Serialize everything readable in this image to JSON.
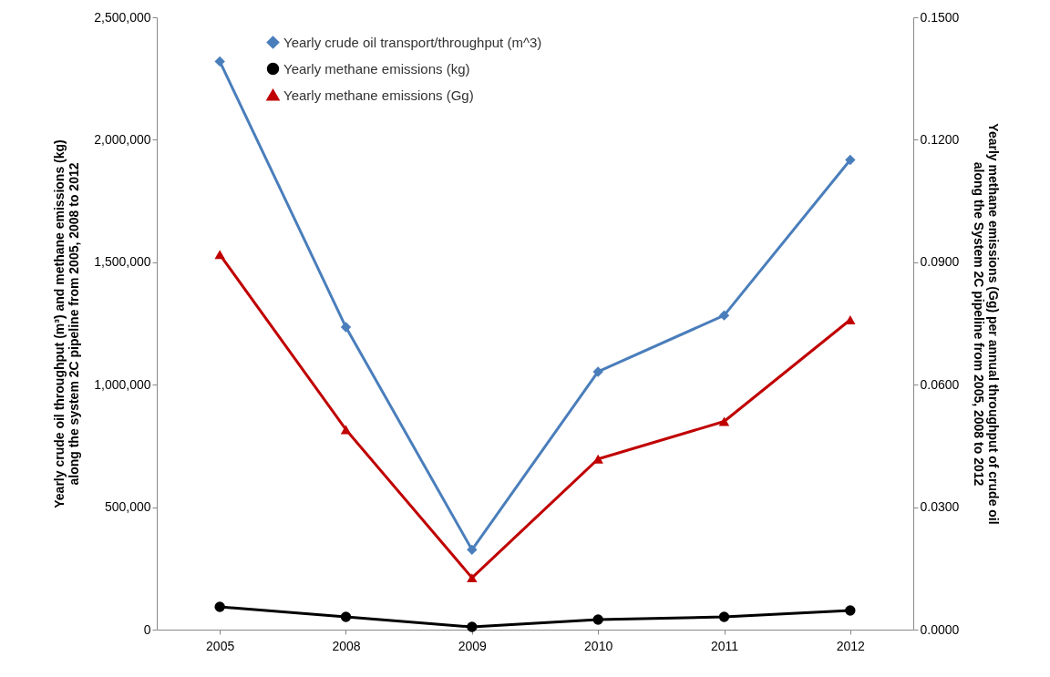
{
  "chart_data": {
    "type": "line",
    "categories": [
      "2005",
      "2008",
      "2009",
      "2010",
      "2011",
      "2012"
    ],
    "ylabel": "Yearly crude oil throughput (m³) and methane emissions (kg)\nalong the system 2C pipeline from 2005, 2008 to 2012",
    "y2label": "Yearly methane emissions (Gg) per annual throughput of crude oil\nalong the System 2C pipeline from 2005, 2008 to 2012",
    "series": [
      {
        "name": "Yearly crude oil transport/throughput (m^3)",
        "color": "#4a7ebb",
        "marker": "diamond",
        "values": [
          2320000,
          1235000,
          326000,
          1053000,
          1283000,
          1918000
        ]
      },
      {
        "name": "Yearly methane emissions (kg)",
        "color": "#000000",
        "marker": "circle",
        "values": [
          93000,
          52000,
          11000,
          41000,
          52000,
          78000
        ]
      },
      {
        "name": "Yearly methane emissions (Gg)",
        "color": "#c00000",
        "marker": "triangle",
        "axis": "y2",
        "values": [
          0.0919,
          0.049,
          0.0127,
          0.0418,
          0.051,
          0.0759
        ]
      }
    ],
    "ylim": [
      0,
      2500000
    ],
    "yticks": [
      0,
      {
        "value": 500000,
        "label": "500,000"
      },
      {
        "value": 1000000,
        "label": "1,000,000"
      },
      {
        "value": 1500000,
        "label": "1,500,000"
      },
      {
        "value": 2000000,
        "label": "2,000,000"
      },
      {
        "value": 2500000,
        "label": "2,500,000"
      }
    ],
    "y2lim": [
      0,
      0.15
    ],
    "y2ticks": [
      {
        "value": 0,
        "label": "0.0000"
      },
      {
        "value": 0.03,
        "label": "0.0300"
      },
      {
        "value": 0.06,
        "label": "0.0600"
      },
      {
        "value": 0.09,
        "label": "0.0900"
      },
      {
        "value": 0.12,
        "label": "0.1200"
      },
      {
        "value": 0.15,
        "label": "0.1500"
      }
    ],
    "grid": false,
    "legend": "top left"
  }
}
